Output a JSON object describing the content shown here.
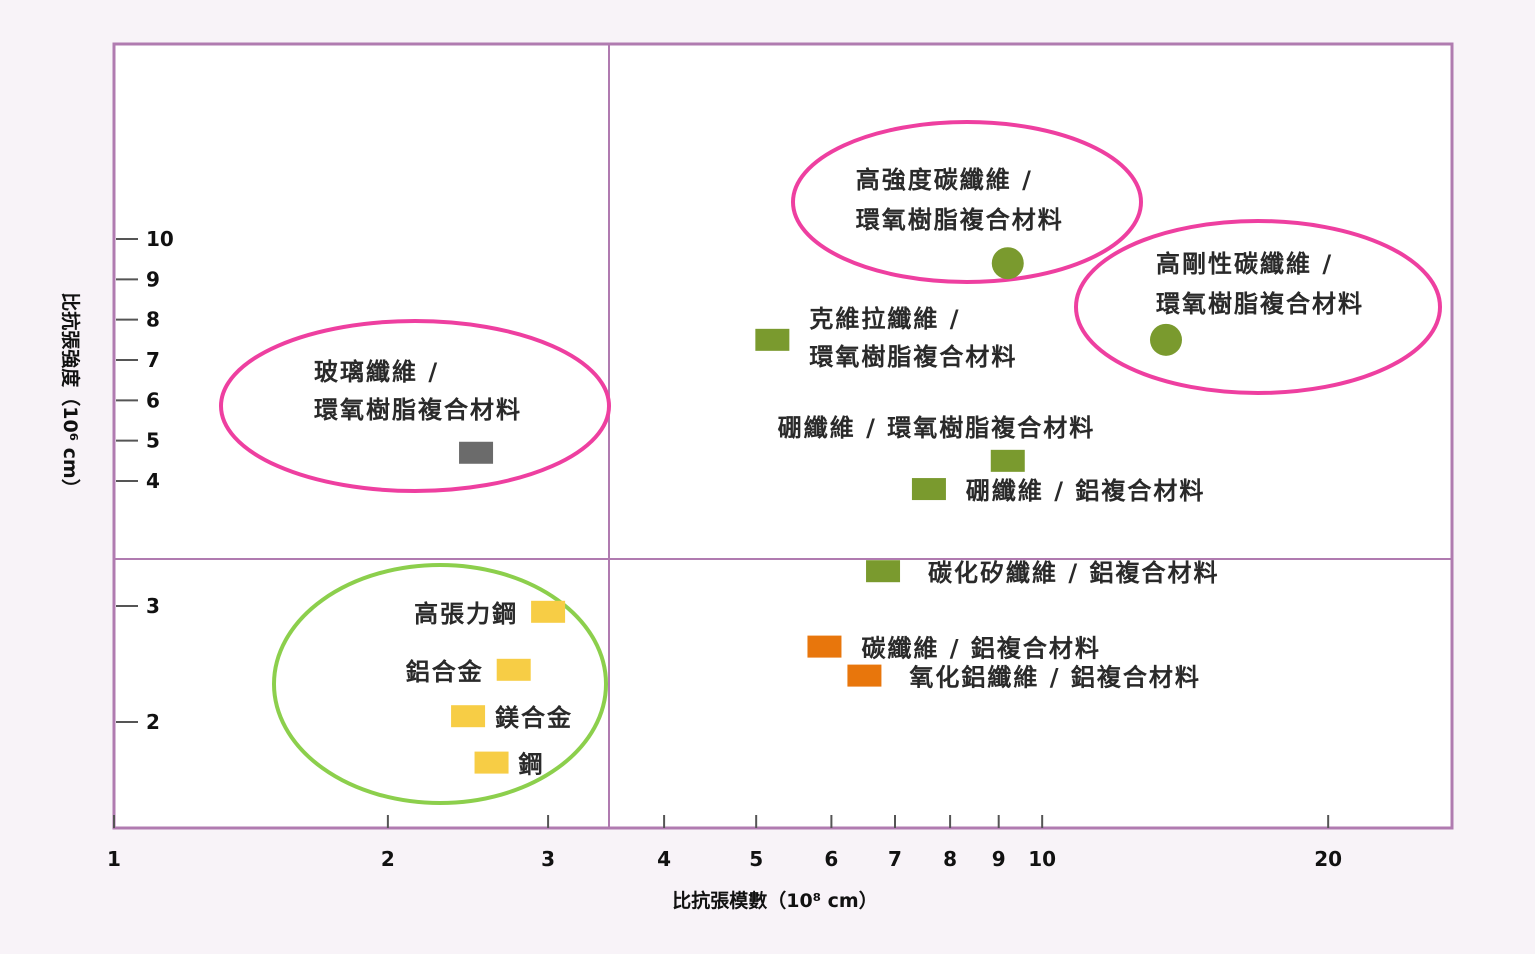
{
  "chart_data": {
    "type": "scatter",
    "xlabel": "比抗張模數（10⁸ cm）",
    "ylabel": "比抗張強度（10⁶ cm）",
    "x_scale": "log",
    "xlim": [
      1,
      27
    ],
    "x_ticks": [
      "1",
      "2",
      "3",
      "4",
      "5",
      "6",
      "7",
      "8",
      "9",
      "10",
      "20"
    ],
    "y_ticks_upper": [
      "10",
      "9",
      "8",
      "7",
      "6",
      "5",
      "4"
    ],
    "y_ticks_lower": [
      "3",
      "2"
    ],
    "colors": {
      "grey": "#6b6b6b",
      "green": "#7a9a2e",
      "orange": "#e8760c",
      "yellow": "#f7cd45",
      "pink_circle": "#ee3fa0",
      "green_circle": "#8ccf4c",
      "frame": "#b07bb0"
    },
    "points": [
      {
        "label": "玻璃纖維 / 環氧樹脂複合材料",
        "x": 2.5,
        "y": 4.7,
        "marker": "square",
        "color": "grey"
      },
      {
        "label": "高強度碳纖維 / 環氧樹脂複合材料",
        "x": 9.2,
        "y": 9.4,
        "marker": "circle",
        "color": "green"
      },
      {
        "label": "高剛性碳纖維 / 環氧樹脂複合材料",
        "x": 13.5,
        "y": 7.5,
        "marker": "circle",
        "color": "green"
      },
      {
        "label": "克維拉纖維 / 環氧樹脂複合材料",
        "x": 5.2,
        "y": 7.5,
        "marker": "square",
        "color": "green"
      },
      {
        "label": "硼纖維 / 環氧樹脂複合材料",
        "x": 9.2,
        "y": 4.5,
        "marker": "square",
        "color": "green"
      },
      {
        "label": "硼纖維 / 鋁複合材料",
        "x": 7.6,
        "y": 3.8,
        "marker": "square",
        "color": "green"
      },
      {
        "label": "碳化矽纖維 / 鋁複合材料",
        "x": 6.8,
        "y": 3.3,
        "marker": "square",
        "color": "green"
      },
      {
        "label": "碳纖維 / 鋁複合材料",
        "x": 5.9,
        "y": 2.65,
        "marker": "square",
        "color": "orange"
      },
      {
        "label": "氧化鋁纖維 / 鋁複合材料",
        "x": 6.5,
        "y": 2.4,
        "marker": "square",
        "color": "orange"
      },
      {
        "label": "高張力鋼",
        "x": 3.0,
        "y": 2.95,
        "marker": "square",
        "color": "yellow"
      },
      {
        "label": "鋁合金",
        "x": 2.75,
        "y": 2.45,
        "marker": "square",
        "color": "yellow"
      },
      {
        "label": "鎂合金",
        "x": 2.45,
        "y": 2.05,
        "marker": "square",
        "color": "yellow"
      },
      {
        "label": "鋼",
        "x": 2.6,
        "y": 1.65,
        "marker": "square",
        "color": "yellow"
      }
    ]
  }
}
